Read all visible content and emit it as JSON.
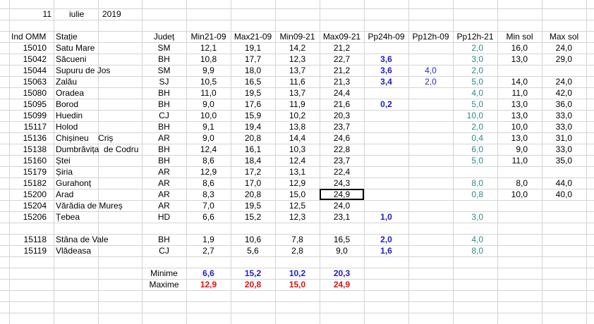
{
  "date": {
    "day": "11",
    "month": "iulie",
    "year": "2019"
  },
  "header": [
    "Ind OMM",
    "Stație",
    "Județ",
    "Min21-09",
    "Max21-09",
    "Min09-21",
    "Max09-21",
    "Pp24h-09",
    "Pp12h-09",
    "Pp12h-21",
    "Min sol",
    "Max sol"
  ],
  "groups": [
    {
      "rows": [
        [
          "15010",
          "Satu Mare",
          "SM",
          "12,1",
          "19,1",
          "14,2",
          "21,2",
          null,
          null,
          "2,0",
          "16,0",
          "24,0"
        ],
        [
          "15042",
          "Săcueni",
          "BH",
          "10,8",
          "17,7",
          "12,3",
          "22,7",
          "3,6",
          null,
          "3,0",
          "13,0",
          "29,0"
        ],
        [
          "15044",
          "Supuru de Jos",
          "SM",
          "9,9",
          "18,0",
          "13,7",
          "21,2",
          "3,6",
          "4,0",
          "2,0",
          null,
          null
        ],
        [
          "15063",
          "Zalău",
          "SJ",
          "10,5",
          "16,5",
          "11,6",
          "21,3",
          "3,4",
          "2,0",
          "5,0",
          "14,0",
          "24,0"
        ],
        [
          "15080",
          "Oradea",
          "BH",
          "11,0",
          "19,5",
          "13,7",
          "24,4",
          null,
          null,
          "4,0",
          "11,0",
          "42,0"
        ],
        [
          "15095",
          "Borod",
          "BH",
          "9,0",
          "17,6",
          "11,9",
          "21,6",
          "0,2",
          null,
          "5,0",
          "13,0",
          "36,0"
        ],
        [
          "15099",
          "Huedin",
          "CJ",
          "10,0",
          "15,9",
          "10,2",
          "20,3",
          null,
          null,
          "10,0",
          "13,0",
          "33,0"
        ],
        [
          "15117",
          "Holod",
          "BH",
          "9,1",
          "19,4",
          "13,8",
          "23,7",
          null,
          null,
          "2,0",
          "10,0",
          "33,0"
        ],
        [
          "15136",
          "Chișineu    Criș",
          "AR",
          "9,0",
          "20,8",
          "14,4",
          "24,6",
          null,
          null,
          "0,4",
          "13,0",
          "31,0"
        ],
        [
          "15138",
          "Dumbrăvița  de Codru",
          "BH",
          "12,4",
          "16,1",
          "10,3",
          "22,8",
          null,
          null,
          "6,0",
          "9,0",
          "33,0"
        ],
        [
          "15160",
          "Ștei",
          "BH",
          "8,6",
          "18,4",
          "12,4",
          "23,7",
          null,
          null,
          "5,0",
          "11,0",
          "35,0"
        ],
        [
          "15179",
          "Șiria",
          "AR",
          "12,9",
          "17,2",
          "13,1",
          "22,4",
          null,
          null,
          null,
          null,
          null
        ],
        [
          "15182",
          "Gurahonț",
          "AR",
          "8,6",
          "17,0",
          "12,9",
          "24,3",
          null,
          null,
          "8,0",
          "8,0",
          "44,0"
        ],
        [
          "15200",
          "Arad",
          "AR",
          "8,3",
          "20,8",
          "15,0",
          "24,9",
          null,
          null,
          "0,8",
          "10,0",
          "40,0"
        ],
        [
          "15204",
          "Vărădia de Mureș",
          "AR",
          "7,0",
          "19,5",
          "12,5",
          "24,0",
          null,
          null,
          null,
          null,
          null
        ],
        [
          "15206",
          "Țebea",
          "HD",
          "6,6",
          "15,2",
          "12,3",
          "23,1",
          "1,0",
          null,
          "3,0",
          null,
          null
        ]
      ]
    },
    {
      "rows": [
        [
          "15118",
          "Stâna de Vale",
          "BH",
          "1,9",
          "10,6",
          "7,8",
          "16,5",
          "2,0",
          null,
          "4,0",
          null,
          null
        ],
        [
          "15119",
          "Vlădeasa",
          "CJ",
          "2,7",
          "5,6",
          "2,8",
          "9,0",
          "1,6",
          null,
          "8,0",
          null,
          null
        ]
      ]
    }
  ],
  "summary": [
    {
      "label": "Minime",
      "values": [
        "6,6",
        "15,2",
        "10,2",
        "20,3"
      ]
    },
    {
      "label": "Maxime",
      "values": [
        "12,9",
        "20,8",
        "15,0",
        "24,9"
      ]
    }
  ]
}
